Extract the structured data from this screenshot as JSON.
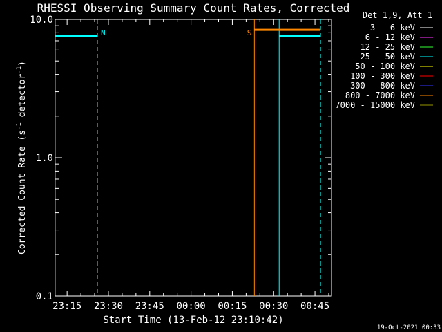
{
  "chart_data": {
    "type": "line",
    "title": "RHESSI Observing Summary Count Rates, Corrected",
    "xlabel": "Start Time (13-Feb-12 23:10:42)",
    "ylabel_main": "Corrected Count Rate (s",
    "ylabel_sup1": "-1",
    "ylabel_mid": " detector",
    "ylabel_sup2": "-1",
    "ylabel_end": ")",
    "x_unit": "minutes after 23:10:42",
    "xlim": [
      0,
      100.3
    ],
    "ylim": [
      0.1,
      10.0
    ],
    "yscale": "log",
    "x_ticks": [
      {
        "label": "23:15",
        "x": 4.3
      },
      {
        "label": "23:30",
        "x": 19.3
      },
      {
        "label": "23:45",
        "x": 34.3
      },
      {
        "label": "00:00",
        "x": 49.3
      },
      {
        "label": "00:15",
        "x": 64.3
      },
      {
        "label": "00:30",
        "x": 79.3
      },
      {
        "label": "00:45",
        "x": 94.3
      }
    ],
    "y_ticks": [
      {
        "label": "0.1",
        "y": 0.1
      },
      {
        "label": "1.0",
        "y": 1.0
      },
      {
        "label": "10.0",
        "y": 10.0
      }
    ],
    "legend_header": "Det 1,9, Att 1",
    "legend": [
      {
        "label": "3 - 6 keV",
        "color": "#ffffff"
      },
      {
        "label": "6 - 12 keV",
        "color": "#ff33ff"
      },
      {
        "label": "12 - 25 keV",
        "color": "#33ff33"
      },
      {
        "label": "25 - 50 keV",
        "color": "#00ffff"
      },
      {
        "label": "50 - 100 keV",
        "color": "#ffff00"
      },
      {
        "label": "100 - 300 keV",
        "color": "#ff0000"
      },
      {
        "label": "300 - 800 keV",
        "color": "#3333ff"
      },
      {
        "label": "800 - 7000 keV",
        "color": "#ff8800"
      },
      {
        "label": "7000 - 15000 keV",
        "color": "#999900"
      }
    ],
    "series": [
      {
        "color": "#00ffff",
        "segments": [
          [
            [
              0,
              7.6
            ],
            [
              15.3,
              7.6
            ]
          ],
          [
            [
              81.3,
              7.6
            ],
            [
              96.3,
              7.6
            ]
          ]
        ]
      },
      {
        "color": "#ff8800",
        "segments": [
          [
            [
              72.3,
              8.4
            ],
            [
              96.3,
              8.4
            ]
          ]
        ]
      }
    ],
    "markers": [
      {
        "x": 0,
        "color": "#00ffff",
        "style": "solid",
        "label": ""
      },
      {
        "x": 15.3,
        "color": "#00ffff",
        "style": "dashed",
        "label": "N"
      },
      {
        "x": 72.3,
        "color": "#ff8800",
        "style": "solid",
        "label": "S"
      },
      {
        "x": 81.3,
        "color": "#00ffff",
        "style": "solid",
        "label": ""
      },
      {
        "x": 96.3,
        "color": "#ff8800",
        "style": "dashed",
        "label": ""
      },
      {
        "x": 96.3,
        "color": "#00ffff",
        "style": "dashed",
        "label": ""
      }
    ],
    "timestamp": "19-Oct-2021 00:33"
  },
  "colors": {
    "background": "#000000",
    "axes": "#ffffff"
  }
}
